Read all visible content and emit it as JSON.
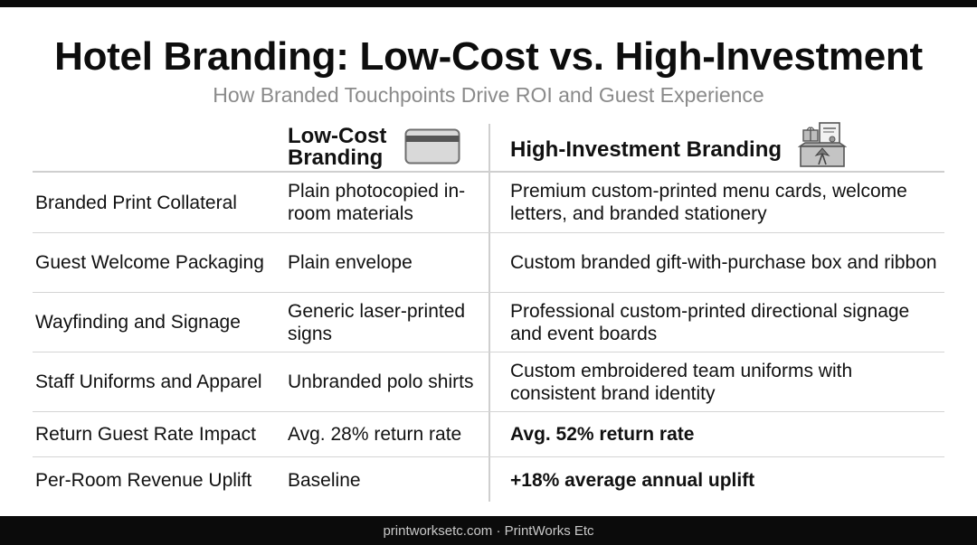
{
  "title": "Hotel Branding: Low-Cost vs. High-Investment",
  "subtitle": "How Branded Touchpoints Drive ROI and Guest Experience",
  "columns": {
    "low_cost_line1": "Low-Cost",
    "low_cost_line2": "Branding",
    "low_cost_icon": "card-icon",
    "high_investment": "High-Investment Branding",
    "high_investment_icon": "gift-box-icon"
  },
  "rows": [
    {
      "label": "Branded Print Collateral",
      "low": "Plain photocopied in-room materials",
      "high": "Premium custom-printed menu cards, welcome letters, and branded stationery"
    },
    {
      "label": "Guest Welcome Packaging",
      "low": "Plain envelope",
      "high": "Custom branded gift-with-purchase box and ribbon"
    },
    {
      "label": "Wayfinding and Signage",
      "low": "Generic laser-printed signs",
      "high": "Professional custom-printed directional signage and event boards"
    },
    {
      "label": "Staff Uniforms and Apparel",
      "low": "Unbranded polo shirts",
      "high": "Custom embroidered team uniforms with consistent brand identity"
    },
    {
      "label": "Return Guest Rate Impact",
      "low": "Avg. 28% return rate",
      "high": "Avg. 52% return rate"
    },
    {
      "label": "Per-Room Revenue Uplift",
      "low": "Baseline",
      "high": "+18% average annual uplift"
    }
  ],
  "footer": "printworksetc.com · PrintWorks Etc"
}
